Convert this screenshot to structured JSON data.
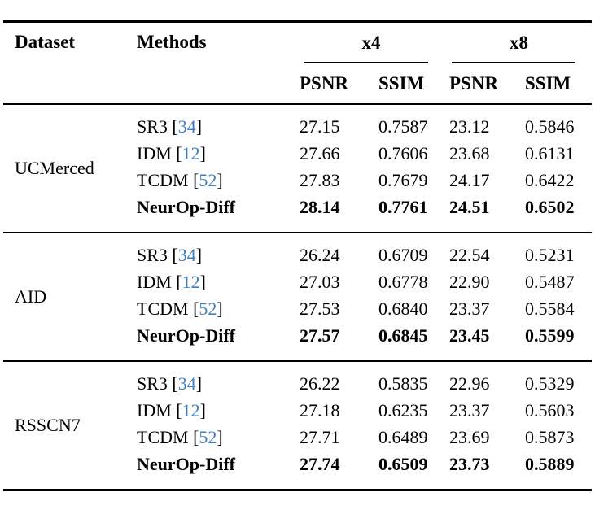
{
  "format": {
    "cite_open": " [",
    "cite_close": "]"
  },
  "colors": {
    "citation": "#3f7fba",
    "text": "#000000",
    "rule": "#000000"
  },
  "header": {
    "dataset": "Dataset",
    "methods": "Methods",
    "scale_x4": "x4",
    "scale_x8": "x8",
    "psnr": "PSNR",
    "ssim": "SSIM"
  },
  "groups": [
    {
      "dataset": "UCMerced",
      "rows": [
        {
          "method": "SR3",
          "cite": "34",
          "bold": false,
          "psnr_x4": "27.15",
          "ssim_x4": "0.7587",
          "psnr_x8": "23.12",
          "ssim_x8": "0.5846"
        },
        {
          "method": "IDM",
          "cite": "12",
          "bold": false,
          "psnr_x4": "27.66",
          "ssim_x4": "0.7606",
          "psnr_x8": "23.68",
          "ssim_x8": "0.6131"
        },
        {
          "method": "TCDM",
          "cite": "52",
          "bold": false,
          "psnr_x4": "27.83",
          "ssim_x4": "0.7679",
          "psnr_x8": "24.17",
          "ssim_x8": "0.6422"
        },
        {
          "method": "NeurOp-Diff",
          "cite": null,
          "bold": true,
          "psnr_x4": "28.14",
          "ssim_x4": "0.7761",
          "psnr_x8": "24.51",
          "ssim_x8": "0.6502"
        }
      ]
    },
    {
      "dataset": "AID",
      "rows": [
        {
          "method": "SR3",
          "cite": "34",
          "bold": false,
          "psnr_x4": "26.24",
          "ssim_x4": "0.6709",
          "psnr_x8": "22.54",
          "ssim_x8": "0.5231"
        },
        {
          "method": "IDM",
          "cite": "12",
          "bold": false,
          "psnr_x4": "27.03",
          "ssim_x4": "0.6778",
          "psnr_x8": "22.90",
          "ssim_x8": "0.5487"
        },
        {
          "method": "TCDM",
          "cite": "52",
          "bold": false,
          "psnr_x4": "27.53",
          "ssim_x4": "0.6840",
          "psnr_x8": "23.37",
          "ssim_x8": "0.5584"
        },
        {
          "method": "NeurOp-Diff",
          "cite": null,
          "bold": true,
          "psnr_x4": "27.57",
          "ssim_x4": "0.6845",
          "psnr_x8": "23.45",
          "ssim_x8": "0.5599"
        }
      ]
    },
    {
      "dataset": "RSSCN7",
      "rows": [
        {
          "method": "SR3",
          "cite": "34",
          "bold": false,
          "psnr_x4": "26.22",
          "ssim_x4": "0.5835",
          "psnr_x8": "22.96",
          "ssim_x8": "0.5329"
        },
        {
          "method": "IDM",
          "cite": "12",
          "bold": false,
          "psnr_x4": "27.18",
          "ssim_x4": "0.6235",
          "psnr_x8": "23.37",
          "ssim_x8": "0.5603"
        },
        {
          "method": "TCDM",
          "cite": "52",
          "bold": false,
          "psnr_x4": "27.71",
          "ssim_x4": "0.6489",
          "psnr_x8": "23.69",
          "ssim_x8": "0.5873"
        },
        {
          "method": "NeurOp-Diff",
          "cite": null,
          "bold": true,
          "psnr_x4": "27.74",
          "ssim_x4": "0.6509",
          "psnr_x8": "23.73",
          "ssim_x8": "0.5889"
        }
      ]
    }
  ]
}
